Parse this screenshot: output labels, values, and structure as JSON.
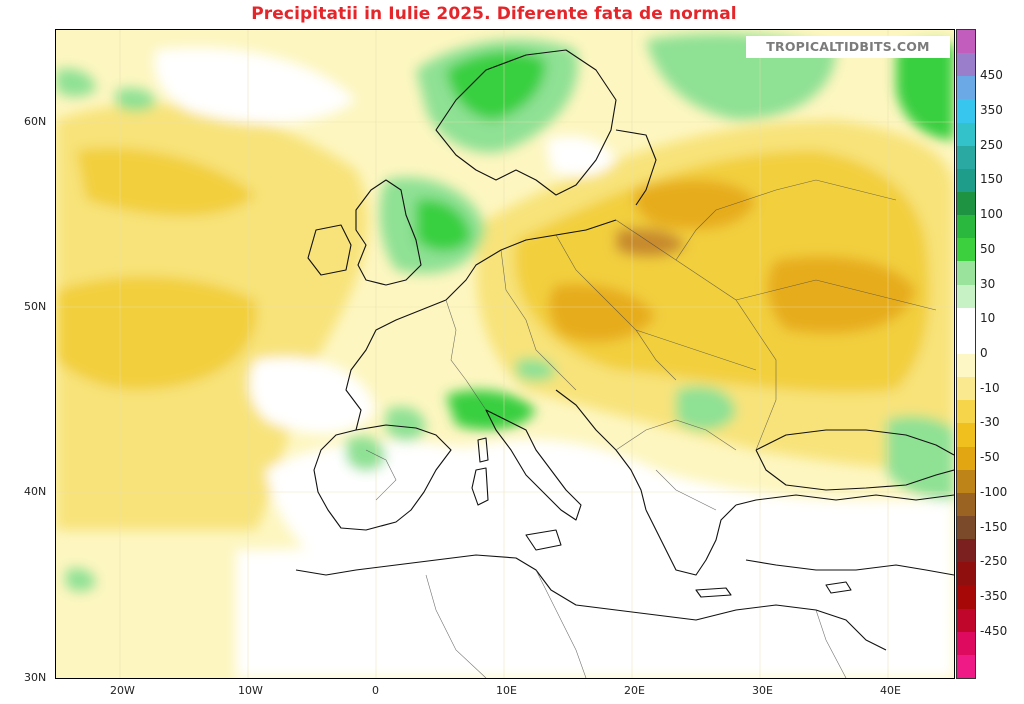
{
  "title": "Precipitatii in Iulie 2025. Diferente fata de normal",
  "watermark": "TROPICALTIDBITS.COM",
  "lat_labels": [
    "60N",
    "50N",
    "40N",
    "30N"
  ],
  "lon_labels": [
    "20W",
    "10W",
    "0",
    "10E",
    "20E",
    "30E",
    "40E"
  ],
  "colorbar": {
    "labels": [
      "450",
      "350",
      "250",
      "150",
      "100",
      "50",
      "30",
      "10",
      "0",
      "-10",
      "-30",
      "-50",
      "-100",
      "-150",
      "-250",
      "-350",
      "-450"
    ],
    "colors": [
      "#c25dbd",
      "#9a7ecb",
      "#6aa9e6",
      "#37c6ee",
      "#33c2c9",
      "#2aa9a3",
      "#1e9e8a",
      "#1e9442",
      "#2bb83e",
      "#3dd03e",
      "#9ae39c",
      "#c6f2c5",
      "#ffffff",
      "#ffffff",
      "#fdf6c5",
      "#fbe98f",
      "#f7d54a",
      "#f0c11e",
      "#e1a612",
      "#bf8418",
      "#9b6321",
      "#7a4a2b",
      "#7c1f1f",
      "#8f0e0e",
      "#a60808",
      "#c0062a",
      "#dd0a5f",
      "#ef1a86"
    ],
    "units": ""
  },
  "map": {
    "projection": "lat-lon",
    "lon_range": [
      -25,
      45
    ],
    "lat_range": [
      30,
      65
    ],
    "field": "precipitation anomaly",
    "palette": {
      "very_wet": "#39cf3f",
      "wet": "#8fe194",
      "near_normal": "#ffffff",
      "slightly_dry": "#fdf6c0",
      "dry": "#f8e37a",
      "drier": "#f2cf3d",
      "very_dry": "#e6ac1e",
      "extreme_dry": "#c88a2e"
    }
  }
}
